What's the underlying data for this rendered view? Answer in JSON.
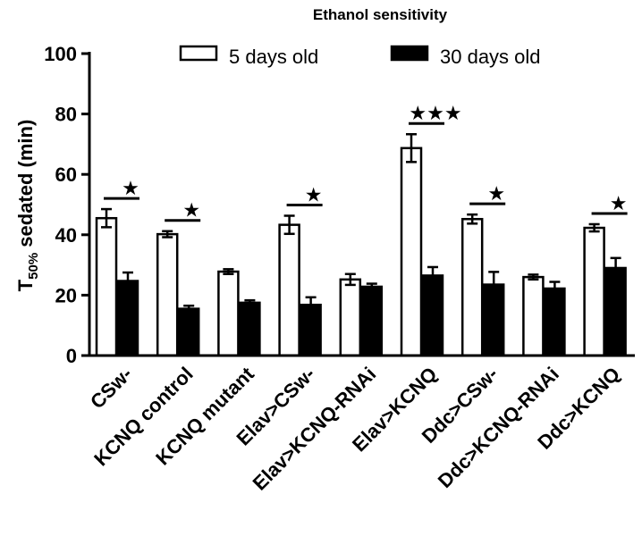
{
  "chart_data": {
    "type": "bar",
    "title": "Ethanol sensitivity",
    "ylabel_main": "T",
    "ylabel_sub": "50%",
    "ylabel_rest": " sedated (min)",
    "ylim": [
      0,
      100
    ],
    "yticks": [
      "0",
      "20",
      "40",
      "60",
      "80",
      "100"
    ],
    "legend_position": "top",
    "categories": [
      "CSw-",
      "KCNQ control",
      "KCNQ mutant",
      "Elav>CSw-",
      "Elav>KCNQ-RNAi",
      "Elav>KCNQ",
      "Ddc>CSw-",
      "Ddc>KCNQ-RNAi",
      "Ddc>KCNQ"
    ],
    "series": [
      {
        "name": "5 days old",
        "color": "#ffffff",
        "values": [
          45.5,
          40.2,
          27.8,
          43.3,
          25.2,
          68.7,
          45.2,
          26.0,
          42.3
        ],
        "errors": [
          3.0,
          1.0,
          0.8,
          3.0,
          1.8,
          4.6,
          1.5,
          0.8,
          1.2
        ]
      },
      {
        "name": "30 days old",
        "color": "#000000",
        "values": [
          24.7,
          15.5,
          17.5,
          16.8,
          22.8,
          26.5,
          23.5,
          22.2,
          29.0
        ],
        "errors": [
          2.8,
          1.0,
          0.8,
          2.5,
          1.0,
          2.8,
          4.2,
          2.2,
          3.3
        ]
      }
    ],
    "significance": [
      {
        "category": "CSw-",
        "stars": "★"
      },
      {
        "category": "KCNQ control",
        "stars": "★"
      },
      {
        "category": "Elav>CSw-",
        "stars": "★"
      },
      {
        "category": "Elav>KCNQ",
        "stars": "★★★"
      },
      {
        "category": "Ddc>CSw-",
        "stars": "★"
      },
      {
        "category": "Ddc>KCNQ",
        "stars": "★"
      }
    ]
  }
}
